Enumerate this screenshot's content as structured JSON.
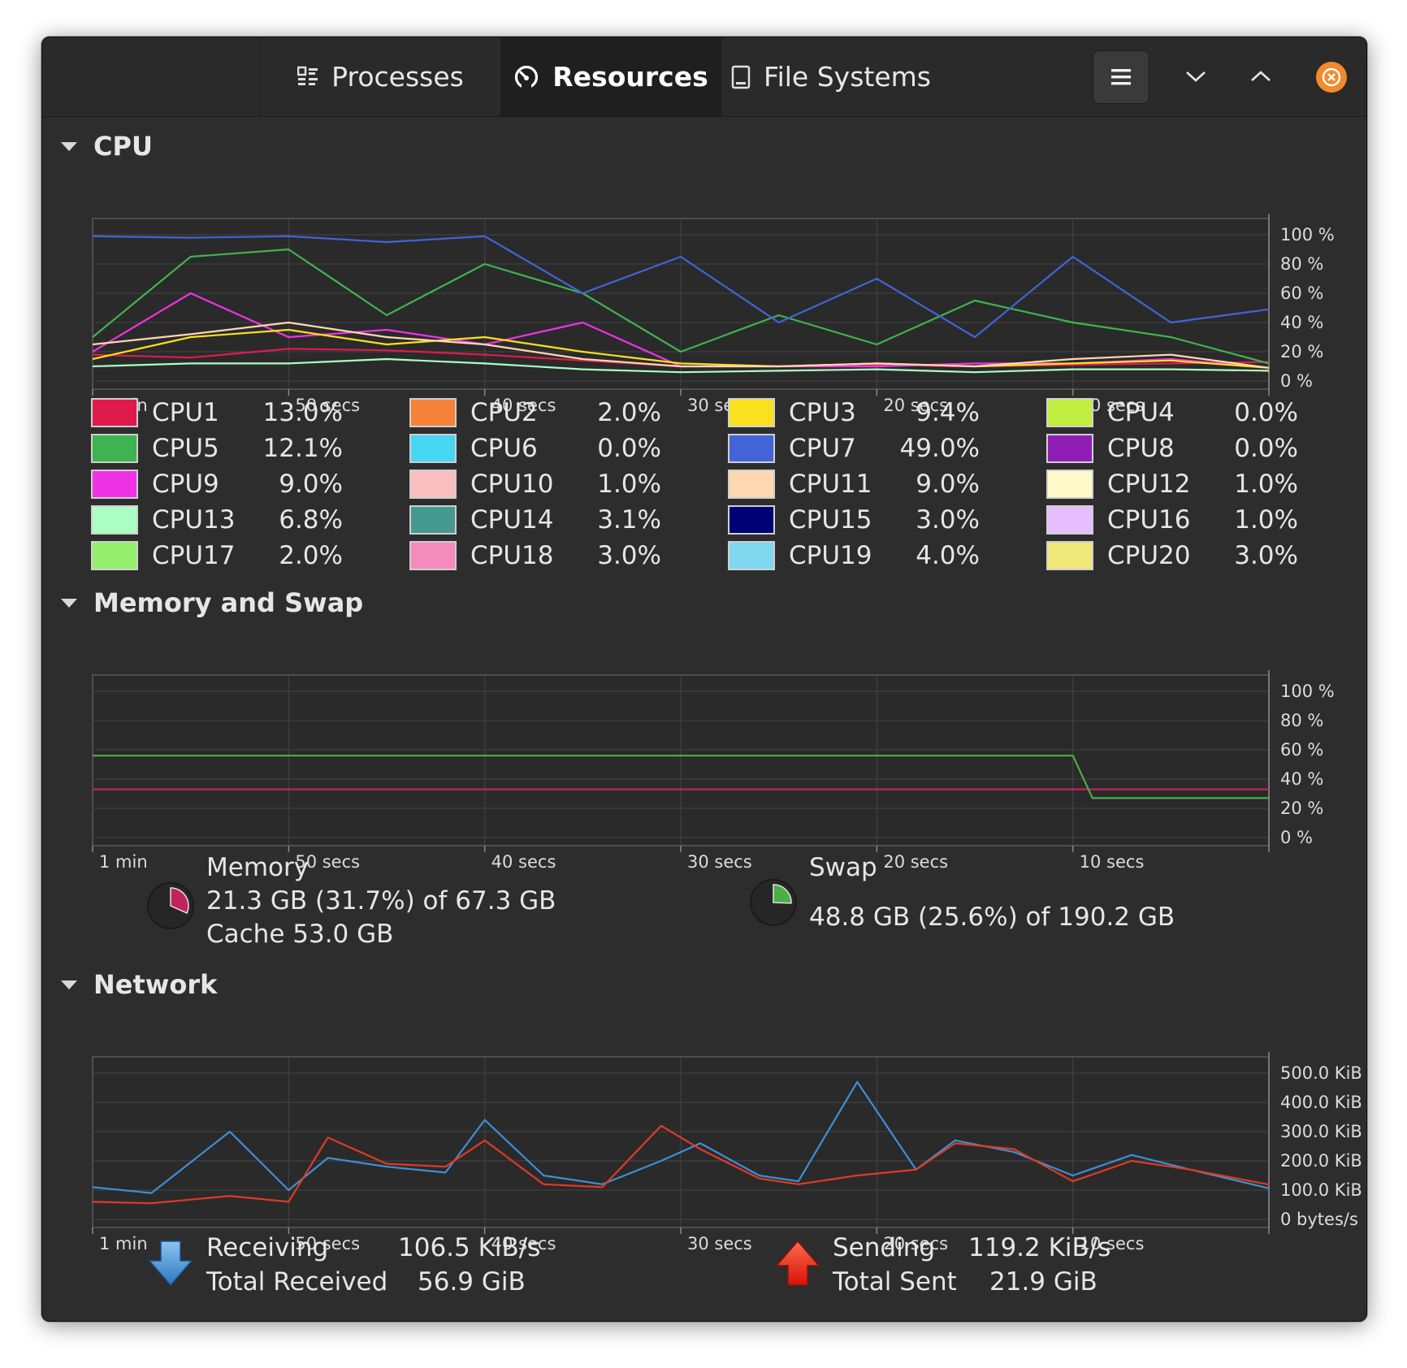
{
  "tabs": [
    {
      "label": "Processes",
      "icon": "processes-list-icon"
    },
    {
      "label": "Resources",
      "icon": "gauge-icon"
    },
    {
      "label": "File Systems",
      "icon": "drive-icon"
    }
  ],
  "active_tab": "Resources",
  "colors": {
    "accent_close": "#f28a2e",
    "memory": "#c0245c",
    "swap": "#4cae45",
    "receiving": "#3d8fd6",
    "sending": "#e03a26"
  },
  "cpu": {
    "section_title": "CPU",
    "y_ticks": [
      "100 %",
      "80 %",
      "60 %",
      "40 %",
      "20 %",
      "0 %"
    ],
    "x_ticks": [
      "1 min",
      "50 secs",
      "40 secs",
      "30 secs",
      "20 secs",
      "10 secs"
    ],
    "cores": [
      {
        "name": "CPU1",
        "value": "13.0%",
        "color": "#e01b4c"
      },
      {
        "name": "CPU2",
        "value": "2.0%",
        "color": "#f6823a"
      },
      {
        "name": "CPU3",
        "value": "9.4%",
        "color": "#f9e11e"
      },
      {
        "name": "CPU4",
        "value": "0.0%",
        "color": "#c1ee40"
      },
      {
        "name": "CPU5",
        "value": "12.1%",
        "color": "#3fb34f"
      },
      {
        "name": "CPU6",
        "value": "0.0%",
        "color": "#45d6f4"
      },
      {
        "name": "CPU7",
        "value": "49.0%",
        "color": "#4363d8"
      },
      {
        "name": "CPU8",
        "value": "0.0%",
        "color": "#911eb4"
      },
      {
        "name": "CPU9",
        "value": "9.0%",
        "color": "#f032e6"
      },
      {
        "name": "CPU10",
        "value": "1.0%",
        "color": "#fabebe"
      },
      {
        "name": "CPU11",
        "value": "9.0%",
        "color": "#ffd8b1"
      },
      {
        "name": "CPU12",
        "value": "1.0%",
        "color": "#fffac8"
      },
      {
        "name": "CPU13",
        "value": "6.8%",
        "color": "#aaffc3"
      },
      {
        "name": "CPU14",
        "value": "3.1%",
        "color": "#469990"
      },
      {
        "name": "CPU15",
        "value": "3.0%",
        "color": "#000075"
      },
      {
        "name": "CPU16",
        "value": "1.0%",
        "color": "#e6beff"
      },
      {
        "name": "CPU17",
        "value": "2.0%",
        "color": "#95f06c"
      },
      {
        "name": "CPU18",
        "value": "3.0%",
        "color": "#f58bbc"
      },
      {
        "name": "CPU19",
        "value": "4.0%",
        "color": "#7fd8f0"
      },
      {
        "name": "CPU20",
        "value": "3.0%",
        "color": "#f0e878"
      }
    ]
  },
  "memory_swap": {
    "section_title": "Memory and Swap",
    "y_ticks": [
      "100 %",
      "80 %",
      "60 %",
      "40 %",
      "20 %",
      "0 %"
    ],
    "x_ticks": [
      "1 min",
      "50 secs",
      "40 secs",
      "30 secs",
      "20 secs",
      "10 secs"
    ],
    "memory": {
      "title": "Memory",
      "usage": "21.3 GB (31.7%) of 67.3 GB",
      "cache": "Cache 53.0 GB",
      "fraction": 0.317
    },
    "swap": {
      "title": "Swap",
      "usage": "48.8 GB (25.6%) of 190.2 GB",
      "fraction": 0.256
    }
  },
  "network": {
    "section_title": "Network",
    "y_ticks": [
      "500.0 KiB",
      "400.0 KiB",
      "300.0 KiB",
      "200.0 KiB",
      "100.0 KiB",
      "0 bytes/s"
    ],
    "x_ticks": [
      "1 min",
      "50 secs",
      "40 secs",
      "30 secs",
      "20 secs",
      "10 secs"
    ],
    "receiving_label": "Receiving",
    "receiving_value": "106.5 KiB/s",
    "total_received_label": "Total Received",
    "total_received_value": "56.9 GiB",
    "sending_label": "Sending",
    "sending_value": "119.2 KiB/s",
    "total_sent_label": "Total Sent",
    "total_sent_value": "21.9 GiB"
  },
  "chart_data": [
    {
      "type": "line",
      "title": "CPU",
      "ylim": [
        0,
        100
      ],
      "x": [
        60,
        55,
        50,
        45,
        40,
        35,
        30,
        25,
        20,
        15,
        10,
        5,
        0
      ],
      "series": [
        {
          "name": "CPU1",
          "values": [
            18,
            16,
            22,
            21,
            18,
            14,
            10,
            10,
            11,
            10,
            11,
            12,
            13
          ]
        },
        {
          "name": "CPU5",
          "values": [
            30,
            85,
            90,
            45,
            80,
            60,
            20,
            45,
            25,
            55,
            40,
            30,
            12
          ]
        },
        {
          "name": "CPU7",
          "values": [
            99,
            98,
            99,
            95,
            99,
            60,
            85,
            40,
            70,
            30,
            85,
            40,
            49
          ]
        },
        {
          "name": "CPU9",
          "values": [
            20,
            60,
            30,
            35,
            25,
            40,
            10,
            10,
            10,
            12,
            12,
            15,
            9
          ]
        },
        {
          "name": "CPU3",
          "values": [
            15,
            30,
            35,
            25,
            30,
            20,
            12,
            10,
            12,
            10,
            12,
            14,
            9
          ]
        },
        {
          "name": "CPU11",
          "values": [
            25,
            32,
            40,
            30,
            25,
            15,
            10,
            10,
            12,
            10,
            15,
            18,
            9
          ]
        },
        {
          "name": "CPU13",
          "values": [
            10,
            12,
            12,
            15,
            12,
            8,
            6,
            7,
            8,
            6,
            8,
            8,
            7
          ]
        }
      ]
    },
    {
      "type": "line",
      "title": "Memory and Swap",
      "ylim": [
        0,
        100
      ],
      "x": [
        60,
        50,
        40,
        30,
        20,
        10,
        9,
        0
      ],
      "series": [
        {
          "name": "Memory",
          "values": [
            33,
            33,
            33,
            33,
            33,
            33,
            33,
            33
          ]
        },
        {
          "name": "Swap",
          "values": [
            56,
            56,
            56,
            56,
            56,
            56,
            27,
            27
          ]
        }
      ]
    },
    {
      "type": "line",
      "title": "Network",
      "ylim": [
        0,
        500
      ],
      "x": [
        60,
        57,
        53,
        50,
        48,
        45,
        42,
        40,
        37,
        34,
        31,
        29,
        26,
        24,
        21,
        18,
        16,
        13,
        10,
        7,
        4,
        0
      ],
      "series": [
        {
          "name": "Receiving",
          "values": [
            110,
            90,
            300,
            100,
            210,
            180,
            160,
            340,
            150,
            120,
            200,
            260,
            150,
            130,
            470,
            170,
            270,
            230,
            150,
            220,
            170,
            106
          ]
        },
        {
          "name": "Sending",
          "values": [
            60,
            55,
            80,
            60,
            280,
            190,
            180,
            270,
            120,
            110,
            320,
            240,
            140,
            120,
            150,
            170,
            260,
            240,
            130,
            200,
            170,
            119
          ]
        }
      ]
    }
  ]
}
